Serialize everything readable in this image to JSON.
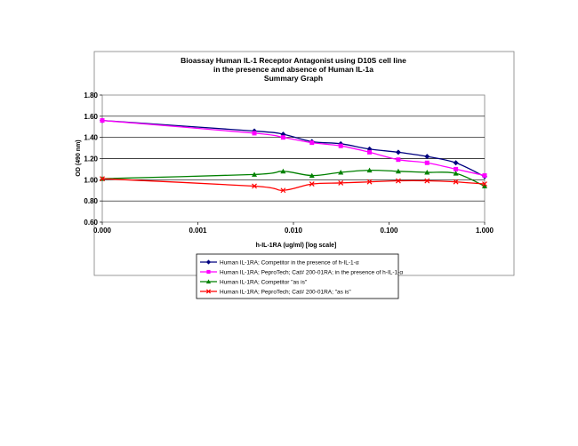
{
  "chart_data": {
    "type": "line",
    "title_lines": [
      "Bioassay Human IL-1 Receptor Antagonist using D10S cell line",
      "in the presence and absence of Human IL-1a",
      "Summary Graph"
    ],
    "xlabel": "h-IL-1RA (ug/ml) [log scale]",
    "ylabel": "OD (490 nm)",
    "x_scale": "log",
    "xlim": [
      0.0001,
      1
    ],
    "ylim": [
      0.6,
      1.8
    ],
    "x_tick_labels": [
      "0.000",
      "0.001",
      "0.010",
      "0.100",
      "1.000"
    ],
    "y_tick_labels": [
      "0.60",
      "0.80",
      "1.00",
      "1.20",
      "1.40",
      "1.60",
      "1.80"
    ],
    "grid": "horizontal",
    "legend_position": "bottom",
    "series": [
      {
        "name": "Human IL-1RA; Competitor in the presence of h-IL-1-α",
        "color": "#000080",
        "marker": "diamond",
        "x": [
          0.0001,
          0.0039,
          0.0078,
          0.0156,
          0.03125,
          0.0625,
          0.125,
          0.25,
          0.5,
          1.0
        ],
        "y": [
          1.56,
          1.46,
          1.43,
          1.36,
          1.34,
          1.29,
          1.26,
          1.22,
          1.16,
          1.03
        ]
      },
      {
        "name": "Human IL-1RA; PeproTech; Cat# 200-01RA; in the presence of h-IL-1-α",
        "color": "#ff00ff",
        "marker": "square",
        "x": [
          0.0001,
          0.0039,
          0.0078,
          0.0156,
          0.03125,
          0.0625,
          0.125,
          0.25,
          0.5,
          1.0
        ],
        "y": [
          1.56,
          1.44,
          1.4,
          1.35,
          1.32,
          1.26,
          1.19,
          1.16,
          1.1,
          1.04
        ]
      },
      {
        "name": "Human IL-1RA; Competitor \"as is\"",
        "color": "#008000",
        "marker": "triangle",
        "x": [
          0.0001,
          0.0039,
          0.0078,
          0.0156,
          0.03125,
          0.0625,
          0.125,
          0.25,
          0.5,
          1.0
        ],
        "y": [
          1.01,
          1.05,
          1.08,
          1.04,
          1.07,
          1.09,
          1.08,
          1.07,
          1.06,
          0.94
        ]
      },
      {
        "name": "Human IL-1RA; PeproTech; Cat# 200-01RA; \"as is\"",
        "color": "#ff0000",
        "marker": "x",
        "x": [
          0.0001,
          0.0039,
          0.0078,
          0.0156,
          0.03125,
          0.0625,
          0.125,
          0.25,
          0.5,
          1.0
        ],
        "y": [
          1.01,
          0.94,
          0.9,
          0.96,
          0.97,
          0.98,
          0.99,
          0.99,
          0.98,
          0.96
        ]
      }
    ]
  }
}
